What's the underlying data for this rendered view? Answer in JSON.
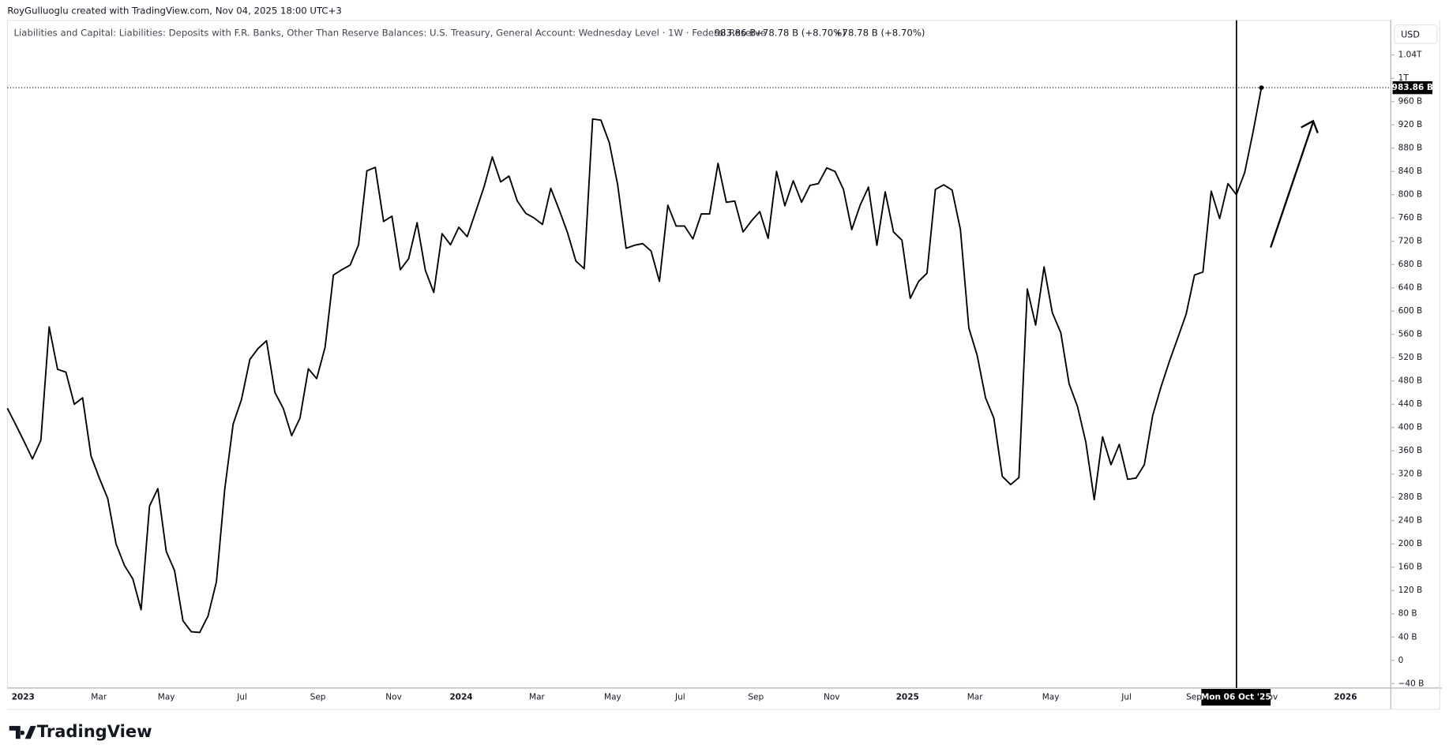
{
  "header": {
    "credit": "RoyGulluoglu created with TradingView.com, Nov 04, 2025 18:00 UTC+3",
    "logo": "TradingView"
  },
  "chart_data": {
    "type": "line",
    "title": "Liabilities and Capital: Liabilities: Deposits with F.R. Banks, Other Than Reserve Balances: U.S. Treasury, General Account: Wednesday Level · 1W · Federal Reserve",
    "legend_values": [
      "983.86 B",
      "+78.78 B (+8.70%)",
      "+78.78 B (+8.70%)"
    ],
    "currency": "USD",
    "x_labels": [
      "2023",
      "Mar",
      "May",
      "Jul",
      "Sep",
      "Nov",
      "2024",
      "Mar",
      "May",
      "Jul",
      "Sep",
      "Nov",
      "2025",
      "Mar",
      "May",
      "Jul",
      "Sep",
      "Nov",
      "2026"
    ],
    "crosshair_label": "Mon 06 Oct '25",
    "last_value_label": "983.86 B",
    "color": "#000000",
    "series": [
      {
        "name": "U.S. Treasury, General Account",
        "color": "#000000",
        "values": [
          433,
          405,
          376,
          346,
          378,
          573,
          500,
          495,
          440,
          451,
          351,
          313,
          278,
          200,
          163,
          140,
          87,
          265,
          295,
          187,
          154,
          68,
          49,
          48,
          76,
          135,
          294,
          406,
          448,
          517,
          536,
          549,
          460,
          433,
          386,
          416,
          501,
          484,
          538,
          662,
          671,
          679,
          714,
          841,
          847,
          754,
          763,
          671,
          690,
          752,
          670,
          632,
          733,
          714,
          744,
          728,
          770,
          813,
          865,
          822,
          832,
          789,
          768,
          760,
          749,
          811,
          774,
          735,
          686,
          673,
          930,
          928,
          889,
          817,
          708,
          713,
          716,
          703,
          651,
          782,
          746,
          746,
          724,
          767,
          767,
          854,
          787,
          789,
          736,
          755,
          771,
          725,
          840,
          781,
          824,
          787,
          816,
          819,
          846,
          840,
          809,
          740,
          782,
          813,
          713,
          805,
          736,
          722,
          622,
          651,
          665,
          809,
          817,
          808,
          740,
          571,
          524,
          451,
          416,
          316,
          302,
          314,
          638,
          576,
          676,
          597,
          563,
          475,
          436,
          375,
          276,
          384,
          336,
          371,
          311,
          313,
          336,
          421,
          470,
          514,
          554,
          595,
          662,
          667,
          806,
          759,
          819,
          800,
          838,
          908,
          983.86
        ]
      }
    ],
    "ylim": [
      -47.6,
      1099.6
    ],
    "yticks": [
      {
        "value": -40,
        "label": "−40 B"
      },
      0,
      {
        "value": 40,
        "label": "40 B"
      },
      {
        "value": 80,
        "label": "80 B"
      },
      {
        "value": 120,
        "label": "120 B"
      },
      {
        "value": 160,
        "label": "160 B"
      },
      {
        "value": 200,
        "label": "200 B"
      },
      {
        "value": 240,
        "label": "240 B"
      },
      {
        "value": 280,
        "label": "280 B"
      },
      {
        "value": 320,
        "label": "320 B"
      },
      {
        "value": 360,
        "label": "360 B"
      },
      {
        "value": 400,
        "label": "400 B"
      },
      {
        "value": 440,
        "label": "440 B"
      },
      {
        "value": 480,
        "label": "480 B"
      },
      {
        "value": 520,
        "label": "520 B"
      },
      {
        "value": 560,
        "label": "560 B"
      },
      {
        "value": 600,
        "label": "600 B"
      },
      {
        "value": 640,
        "label": "640 B"
      },
      {
        "value": 680,
        "label": "680 B"
      },
      {
        "value": 720,
        "label": "720 B"
      },
      {
        "value": 760,
        "label": "760 B"
      },
      {
        "value": 800,
        "label": "800 B"
      },
      {
        "value": 840,
        "label": "840 B"
      },
      {
        "value": 880,
        "label": "880 B"
      },
      {
        "value": 920,
        "label": "920 B"
      },
      {
        "value": 960,
        "label": "960 B"
      },
      {
        "value": 1000,
        "label": "1T"
      },
      {
        "value": 1040,
        "label": "1.04T"
      }
    ],
    "grid": false
  }
}
